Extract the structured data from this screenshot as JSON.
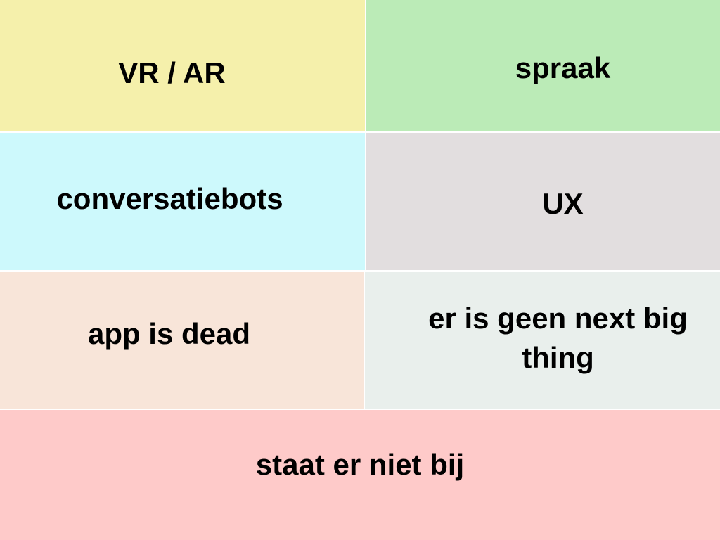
{
  "tiles": [
    {
      "label": "VR / AR",
      "color": "#f5f0ab"
    },
    {
      "label": "spraak",
      "color": "#bbebb7"
    },
    {
      "label": "conversatiebots",
      "color": "#cdf9fc"
    },
    {
      "label": "UX",
      "color": "#e2dedf"
    },
    {
      "label": "app is dead",
      "color": "#f8e5d9"
    },
    {
      "label": "er is geen next big thing",
      "color": "#e9efec"
    },
    {
      "label": "staat er niet bij",
      "color": "#fecac9"
    }
  ]
}
